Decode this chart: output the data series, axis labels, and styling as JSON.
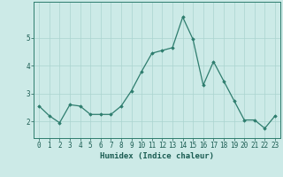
{
  "x": [
    0,
    1,
    2,
    3,
    4,
    5,
    6,
    7,
    8,
    9,
    10,
    11,
    12,
    13,
    14,
    15,
    16,
    17,
    18,
    19,
    20,
    21,
    22,
    23
  ],
  "y": [
    2.55,
    2.2,
    1.95,
    2.6,
    2.55,
    2.25,
    2.25,
    2.25,
    2.55,
    3.1,
    3.8,
    4.45,
    4.55,
    4.65,
    5.75,
    4.95,
    3.3,
    4.15,
    3.45,
    2.75,
    2.05,
    2.05,
    1.75,
    2.2
  ],
  "line_color": "#2e7d6e",
  "marker": "D",
  "marker_size": 1.8,
  "bg_color": "#cceae7",
  "grid_color": "#aad4d0",
  "axis_color": "#2e7d6e",
  "tick_color": "#1a5c52",
  "xlabel": "Humidex (Indice chaleur)",
  "xlabel_fontsize": 6.5,
  "tick_fontsize": 5.5,
  "ylim": [
    1.4,
    6.3
  ],
  "yticks": [
    2,
    3,
    4,
    5
  ],
  "xticks": [
    0,
    1,
    2,
    3,
    4,
    5,
    6,
    7,
    8,
    9,
    10,
    11,
    12,
    13,
    14,
    15,
    16,
    17,
    18,
    19,
    20,
    21,
    22,
    23
  ]
}
